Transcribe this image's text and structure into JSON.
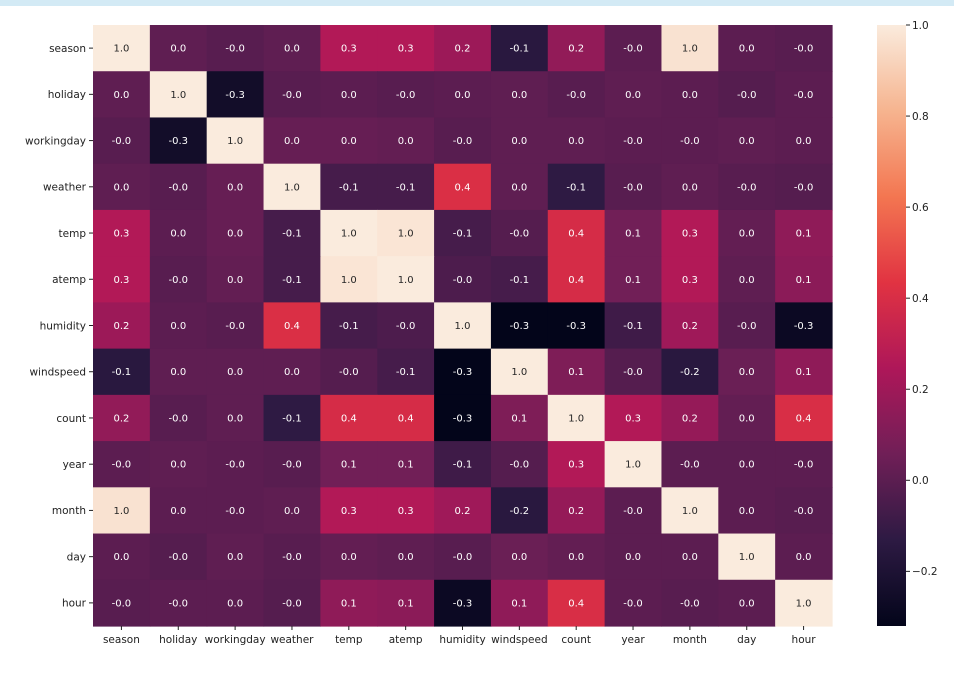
{
  "chart_data": {
    "type": "heatmap",
    "title": "",
    "xlabel": "",
    "ylabel": "",
    "rows": [
      "season",
      "holiday",
      "workingday",
      "weather",
      "temp",
      "atemp",
      "humidity",
      "windspeed",
      "count",
      "year",
      "month",
      "day",
      "hour"
    ],
    "columns": [
      "season",
      "holiday",
      "workingday",
      "weather",
      "temp",
      "atemp",
      "humidity",
      "windspeed",
      "count",
      "year",
      "month",
      "day",
      "hour"
    ],
    "cell_labels": [
      [
        "1.0",
        "0.0",
        "-0.0",
        "0.0",
        "0.3",
        "0.3",
        "0.2",
        "-0.1",
        "0.2",
        "-0.0",
        "1.0",
        "0.0",
        "-0.0"
      ],
      [
        "0.0",
        "1.0",
        "-0.3",
        "-0.0",
        "0.0",
        "-0.0",
        "0.0",
        "0.0",
        "-0.0",
        "0.0",
        "0.0",
        "-0.0",
        "-0.0"
      ],
      [
        "-0.0",
        "-0.3",
        "1.0",
        "0.0",
        "0.0",
        "0.0",
        "-0.0",
        "0.0",
        "0.0",
        "-0.0",
        "-0.0",
        "0.0",
        "0.0"
      ],
      [
        "0.0",
        "-0.0",
        "0.0",
        "1.0",
        "-0.1",
        "-0.1",
        "0.4",
        "0.0",
        "-0.1",
        "-0.0",
        "0.0",
        "-0.0",
        "-0.0"
      ],
      [
        "0.3",
        "0.0",
        "0.0",
        "-0.1",
        "1.0",
        "1.0",
        "-0.1",
        "-0.0",
        "0.4",
        "0.1",
        "0.3",
        "0.0",
        "0.1"
      ],
      [
        "0.3",
        "-0.0",
        "0.0",
        "-0.1",
        "1.0",
        "1.0",
        "-0.0",
        "-0.1",
        "0.4",
        "0.1",
        "0.3",
        "0.0",
        "0.1"
      ],
      [
        "0.2",
        "0.0",
        "-0.0",
        "0.4",
        "-0.1",
        "-0.0",
        "1.0",
        "-0.3",
        "-0.3",
        "-0.1",
        "0.2",
        "-0.0",
        "-0.3"
      ],
      [
        "-0.1",
        "0.0",
        "0.0",
        "0.0",
        "-0.0",
        "-0.1",
        "-0.3",
        "1.0",
        "0.1",
        "-0.0",
        "-0.2",
        "0.0",
        "0.1"
      ],
      [
        "0.2",
        "-0.0",
        "0.0",
        "-0.1",
        "0.4",
        "0.4",
        "-0.3",
        "0.1",
        "1.0",
        "0.3",
        "0.2",
        "0.0",
        "0.4"
      ],
      [
        "-0.0",
        "0.0",
        "-0.0",
        "-0.0",
        "0.1",
        "0.1",
        "-0.1",
        "-0.0",
        "0.3",
        "1.0",
        "-0.0",
        "0.0",
        "-0.0"
      ],
      [
        "1.0",
        "0.0",
        "-0.0",
        "0.0",
        "0.3",
        "0.3",
        "0.2",
        "-0.2",
        "0.2",
        "-0.0",
        "1.0",
        "0.0",
        "-0.0"
      ],
      [
        "0.0",
        "-0.0",
        "0.0",
        "-0.0",
        "0.0",
        "0.0",
        "-0.0",
        "0.0",
        "0.0",
        "0.0",
        "0.0",
        "1.0",
        "0.0"
      ],
      [
        "-0.0",
        "-0.0",
        "0.0",
        "-0.0",
        "0.1",
        "0.1",
        "-0.3",
        "0.1",
        "0.4",
        "-0.0",
        "-0.0",
        "0.0",
        "1.0"
      ]
    ],
    "values": [
      [
        1.0,
        0.01,
        -0.01,
        0.01,
        0.26,
        0.26,
        0.19,
        -0.15,
        0.16,
        -0.0,
        0.97,
        0.0,
        -0.01
      ],
      [
        0.01,
        1.0,
        -0.25,
        -0.01,
        0.0,
        -0.01,
        0.0,
        0.01,
        -0.01,
        0.01,
        0.0,
        -0.02,
        -0.0
      ],
      [
        -0.01,
        -0.25,
        1.0,
        0.03,
        0.03,
        0.02,
        -0.01,
        0.01,
        0.01,
        -0.0,
        -0.0,
        0.01,
        0.0
      ],
      [
        0.01,
        -0.01,
        0.03,
        1.0,
        -0.06,
        -0.06,
        0.41,
        0.01,
        -0.13,
        -0.01,
        0.01,
        -0.01,
        -0.02
      ],
      [
        0.26,
        0.0,
        0.03,
        -0.06,
        1.0,
        0.98,
        -0.06,
        -0.02,
        0.39,
        0.06,
        0.26,
        0.02,
        0.15
      ],
      [
        0.26,
        -0.01,
        0.02,
        -0.06,
        0.98,
        1.0,
        -0.04,
        -0.06,
        0.39,
        0.06,
        0.26,
        0.01,
        0.14
      ],
      [
        0.19,
        0.0,
        -0.01,
        0.41,
        -0.06,
        -0.04,
        1.0,
        -0.32,
        -0.32,
        -0.08,
        0.2,
        -0.01,
        -0.28
      ],
      [
        -0.15,
        0.01,
        0.01,
        0.01,
        -0.02,
        -0.06,
        -0.32,
        1.0,
        0.1,
        -0.02,
        -0.15,
        0.04,
        0.15
      ],
      [
        0.16,
        -0.01,
        0.01,
        -0.13,
        0.39,
        0.39,
        -0.32,
        0.1,
        1.0,
        0.26,
        0.17,
        0.02,
        0.4
      ],
      [
        -0.0,
        0.01,
        -0.0,
        -0.01,
        0.06,
        0.06,
        -0.08,
        -0.02,
        0.26,
        1.0,
        -0.0,
        0.0,
        -0.0
      ],
      [
        0.97,
        0.0,
        -0.0,
        0.01,
        0.26,
        0.26,
        0.2,
        -0.15,
        0.17,
        -0.0,
        1.0,
        0.0,
        -0.01
      ],
      [
        0.0,
        -0.02,
        0.01,
        -0.01,
        0.02,
        0.01,
        -0.01,
        0.04,
        0.02,
        0.0,
        0.0,
        1.0,
        0.0
      ],
      [
        -0.01,
        -0.0,
        0.0,
        -0.02,
        0.15,
        0.14,
        -0.28,
        0.15,
        0.4,
        -0.0,
        -0.01,
        0.0,
        1.0
      ]
    ],
    "vmin": -0.32,
    "vmax": 1.0,
    "colormap": "rocket",
    "colorbar": {
      "ticks": [
        1.0,
        0.8,
        0.6,
        0.4,
        0.2,
        0.0,
        -0.2
      ],
      "tick_labels": [
        "1.0",
        "0.8",
        "0.6",
        "0.4",
        "0.2",
        "0.0",
        "−0.2"
      ],
      "placement": "right"
    },
    "colormap_stops": [
      "#03051a",
      "#2d1a43",
      "#701f57",
      "#ae1759",
      "#e13342",
      "#f37651",
      "#f6b48f",
      "#faebdd"
    ]
  }
}
